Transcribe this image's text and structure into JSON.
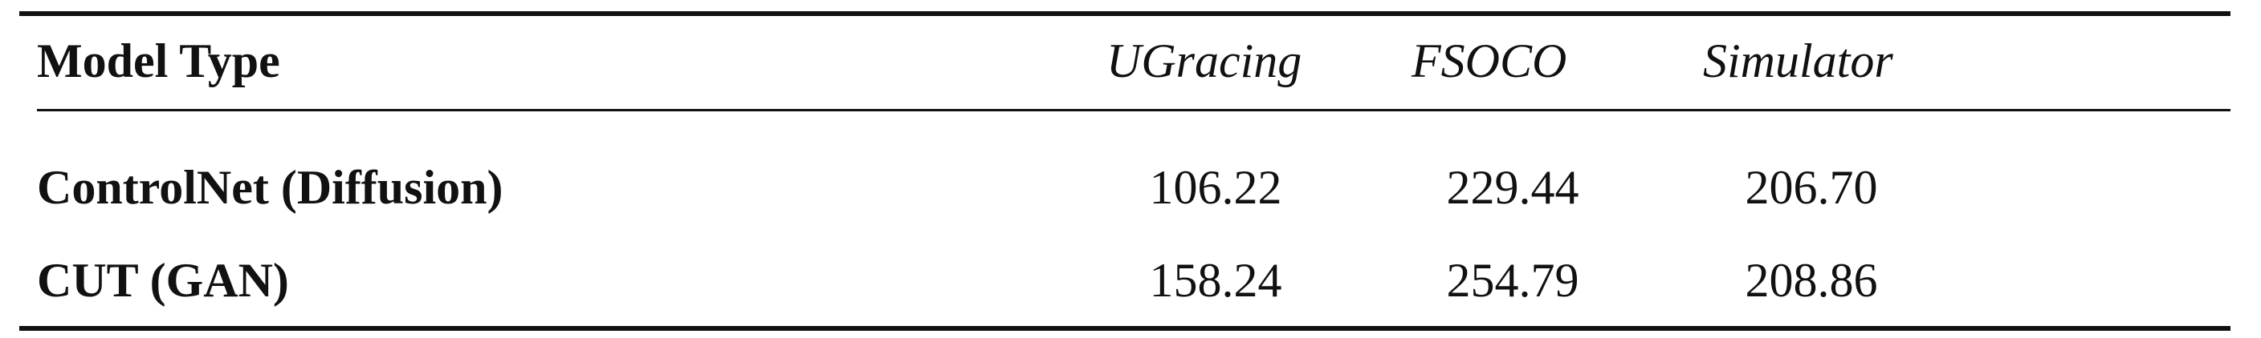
{
  "table": {
    "header": {
      "model_type": "Model Type",
      "columns": [
        "UGracing",
        "FSOCO",
        "Simulator"
      ]
    },
    "rows": [
      {
        "model": "ControlNet (Diffusion)",
        "values": [
          "106.22",
          "229.44",
          "206.70"
        ]
      },
      {
        "model": "CUT (GAN)",
        "values": [
          "158.24",
          "254.79",
          "208.86"
        ]
      }
    ]
  }
}
